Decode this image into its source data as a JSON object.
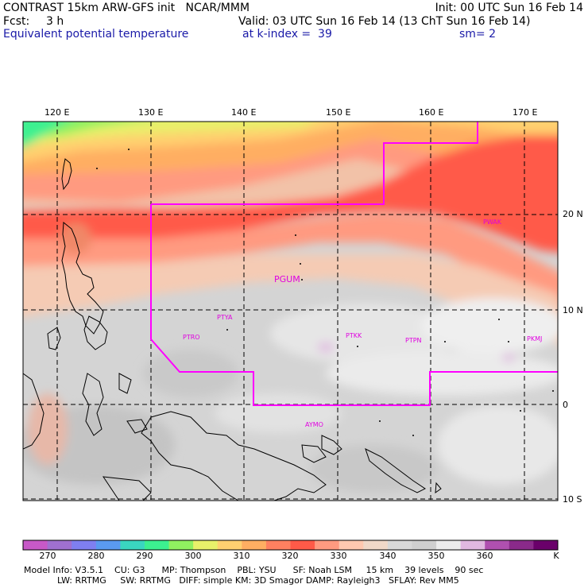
{
  "header": {
    "line1_left": "CONTRAST 15km ARW-GFS init   NCAR/MMM",
    "line1_right": "Init: 00 UTC Sun 16 Feb 14",
    "fcst_label": "Fcst:",
    "fcst_value": "3 h",
    "valid": "Valid: 03 UTC Sun 16 Feb 14 (13 ChT Sun 16 Feb 14)",
    "field": "Equivalent potential temperature",
    "level": "at k-index =  39",
    "smoothing": "sm= 2"
  },
  "map": {
    "lon_labels": [
      "120 E",
      "130 E",
      "140 E",
      "150 E",
      "160 E",
      "170 E"
    ],
    "lat_labels": [
      "20 N",
      "10 N",
      "0",
      "10 S"
    ],
    "stations": [
      {
        "id": "PGUM"
      },
      {
        "id": "PTYA"
      },
      {
        "id": "PTRO"
      },
      {
        "id": "PTKK"
      },
      {
        "id": "PTPN"
      },
      {
        "id": "PKMJ"
      },
      {
        "id": "PWAK"
      },
      {
        "id": "AYMO"
      }
    ],
    "domain_outline_color": "#ff00ff"
  },
  "colorbar": {
    "colors": [
      "#c759c7",
      "#a070d0",
      "#7f7ff0",
      "#5a9af0",
      "#3ad6c0",
      "#3cf090",
      "#90f060",
      "#e8f06a",
      "#ffd070",
      "#ffae62",
      "#ff8060",
      "#ff5a48",
      "#ff9a80",
      "#ffc8b0",
      "#f0d8c8",
      "#d8d8d8",
      "#cfcfcf",
      "#ececec",
      "#e0b8e0",
      "#b050b0",
      "#8a2a8a",
      "#6a006a"
    ],
    "labels": [
      "270",
      "280",
      "290",
      "300",
      "310",
      "320",
      "330",
      "340",
      "350",
      "360",
      "K"
    ]
  },
  "model_info": {
    "line1": "Model Info: V3.5.1    CU: G3      MP: Thompson    PBL: YSU      SF: Noah LSM     15 km    39 levels    90 sec",
    "line2": "            LW: RRTMG     SW: RRTMG   DIFF: simple KM: 3D Smagor DAMP: Rayleigh3   SFLAY: Rev MM5"
  }
}
